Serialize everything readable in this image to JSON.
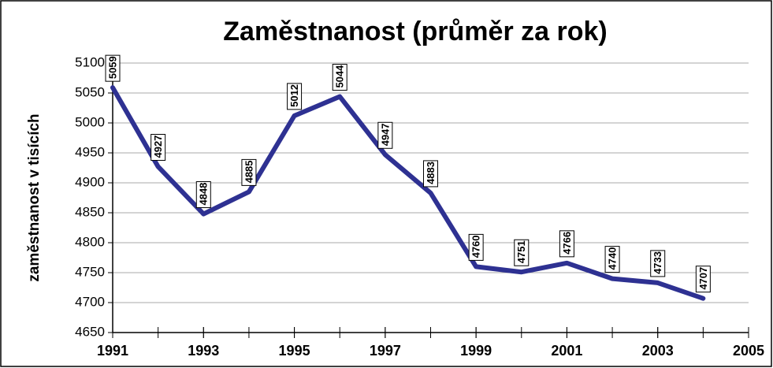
{
  "chart_data": {
    "type": "line",
    "title": "Zaměstnanost (průměr za rok)",
    "y_label": "zaměstnanost v tisících",
    "x": [
      1991,
      1992,
      1993,
      1994,
      1995,
      1996,
      1997,
      1998,
      1999,
      2000,
      2001,
      2002,
      2003,
      2004
    ],
    "series": [
      {
        "name": "zaměstnanost",
        "color": "#2e3192",
        "values": [
          5059,
          4927,
          4848,
          4885,
          5012,
          5044,
          4947,
          4883,
          4760,
          4751,
          4766,
          4740,
          4733,
          4707
        ]
      }
    ],
    "xlim": [
      1991,
      2005
    ],
    "xticks": [
      1991,
      1993,
      1995,
      1997,
      1999,
      2001,
      2003,
      2005
    ],
    "ylim": [
      4650,
      5100
    ],
    "yticks": [
      4650,
      4700,
      4750,
      4800,
      4850,
      4900,
      4950,
      5000,
      5050,
      5100
    ],
    "grid": true
  }
}
